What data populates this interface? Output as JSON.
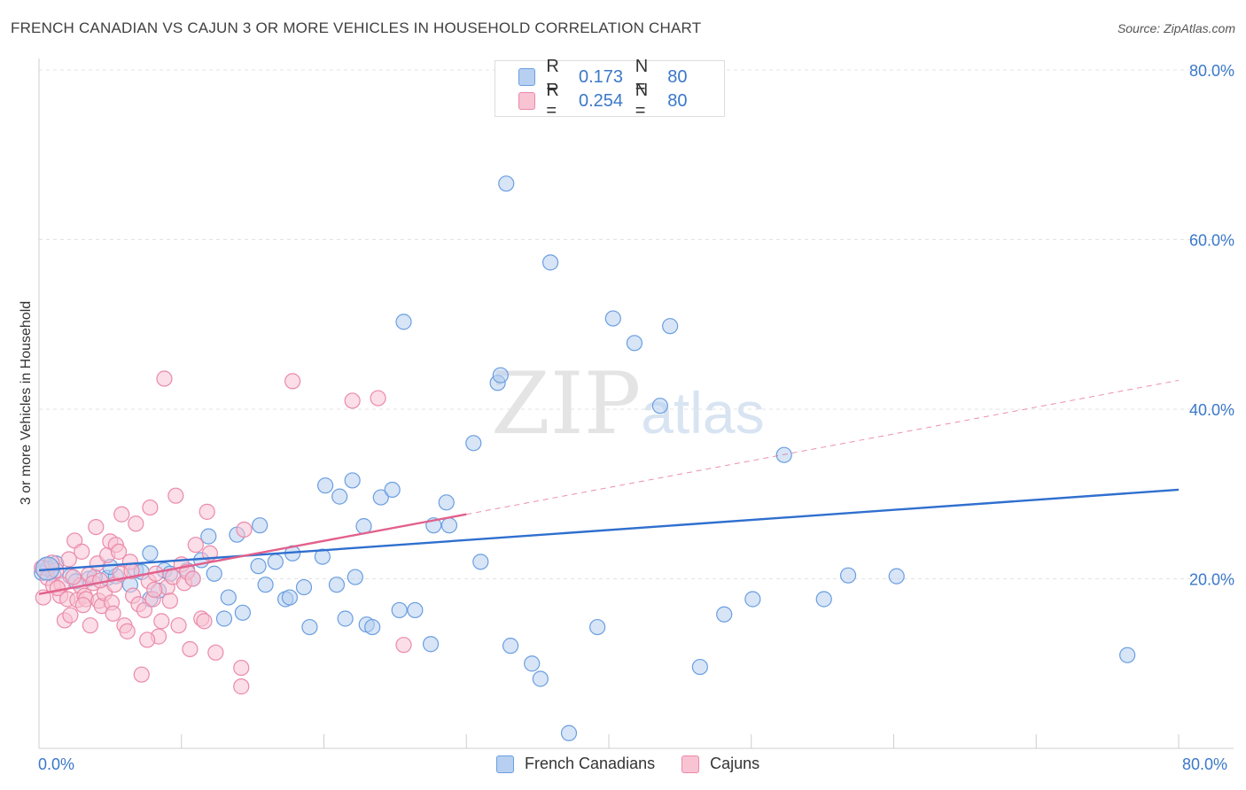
{
  "header": {
    "title": "FRENCH CANADIAN VS CAJUN 3 OR MORE VEHICLES IN HOUSEHOLD CORRELATION CHART",
    "source": "Source: ZipAtlas.com"
  },
  "legend": {
    "rows": [
      {
        "r_label": "R =",
        "r_value": "0.173",
        "n_label": "N =",
        "n_value": "80"
      },
      {
        "r_label": "R =",
        "r_value": "0.254",
        "n_label": "N =",
        "n_value": "80"
      }
    ]
  },
  "watermark": {
    "zip": "ZIP",
    "atlas": "atlas"
  },
  "bottom_legend": {
    "items": [
      "French Canadians",
      "Cajuns"
    ]
  },
  "colors": {
    "blue_fill": "#b7cff0",
    "blue_stroke": "#6a9ee0",
    "blue_line": "#2f6fcf",
    "pink_fill": "#f8c3d3",
    "pink_stroke": "#eb8aaa",
    "pink_line": "#e2608c",
    "grid": "#e3e3e3",
    "axis_text": "#3a78c9"
  },
  "chart_data": {
    "type": "scatter",
    "title": "FRENCH CANADIAN VS CAJUN 3 OR MORE VEHICLES IN HOUSEHOLD CORRELATION CHART",
    "xlabel": "",
    "ylabel": "3 or more Vehicles in Household",
    "xlim": [
      0,
      80
    ],
    "ylim": [
      0,
      80
    ],
    "x_tick_labels": [
      "0.0%",
      "80.0%"
    ],
    "y_tick_labels": [
      "80.0%",
      "60.0%",
      "40.0%",
      "20.0%"
    ],
    "y_ticks": [
      80,
      60,
      40,
      20
    ],
    "grid": true,
    "series": [
      {
        "name": "French Canadians",
        "R": 0.173,
        "N": 80,
        "trend": {
          "x": [
            0,
            80
          ],
          "y": [
            21.0,
            30.5
          ]
        },
        "points": [
          [
            0.5,
            21.6
          ],
          [
            1.0,
            20.5
          ],
          [
            2.2,
            20.3
          ],
          [
            3.5,
            20.0
          ],
          [
            4.8,
            20.1
          ],
          [
            5.4,
            20.3
          ],
          [
            6.4,
            19.3
          ],
          [
            6.8,
            21.0
          ],
          [
            7.8,
            17.6
          ],
          [
            7.8,
            23.0
          ],
          [
            8.4,
            18.6
          ],
          [
            8.8,
            21.0
          ],
          [
            9.2,
            20.6
          ],
          [
            10.4,
            21.0
          ],
          [
            10.8,
            20.0
          ],
          [
            11.4,
            22.2
          ],
          [
            11.9,
            25.0
          ],
          [
            12.3,
            20.6
          ],
          [
            13.0,
            15.3
          ],
          [
            13.3,
            17.8
          ],
          [
            13.9,
            25.2
          ],
          [
            14.3,
            16.0
          ],
          [
            15.4,
            21.5
          ],
          [
            15.5,
            26.3
          ],
          [
            15.9,
            19.3
          ],
          [
            16.6,
            22.0
          ],
          [
            17.3,
            17.6
          ],
          [
            17.6,
            17.8
          ],
          [
            17.8,
            23.0
          ],
          [
            18.6,
            19.0
          ],
          [
            19.0,
            14.3
          ],
          [
            19.9,
            22.6
          ],
          [
            20.1,
            31.0
          ],
          [
            20.9,
            19.3
          ],
          [
            21.1,
            29.7
          ],
          [
            21.5,
            15.3
          ],
          [
            22.0,
            31.6
          ],
          [
            22.2,
            20.2
          ],
          [
            22.8,
            26.2
          ],
          [
            23.0,
            14.6
          ],
          [
            23.4,
            14.3
          ],
          [
            24.0,
            29.6
          ],
          [
            24.8,
            30.5
          ],
          [
            25.3,
            16.3
          ],
          [
            25.6,
            50.3
          ],
          [
            26.4,
            16.3
          ],
          [
            27.5,
            12.3
          ],
          [
            27.7,
            26.3
          ],
          [
            28.6,
            29.0
          ],
          [
            28.8,
            26.3
          ],
          [
            30.5,
            36.0
          ],
          [
            31.0,
            22.0
          ],
          [
            32.2,
            43.1
          ],
          [
            32.4,
            44.0
          ],
          [
            32.8,
            66.6
          ],
          [
            33.1,
            12.1
          ],
          [
            34.6,
            10.0
          ],
          [
            35.2,
            8.2
          ],
          [
            35.9,
            57.3
          ],
          [
            37.2,
            1.8
          ],
          [
            39.2,
            14.3
          ],
          [
            40.3,
            50.7
          ],
          [
            41.8,
            47.8
          ],
          [
            43.6,
            40.4
          ],
          [
            44.3,
            49.8
          ],
          [
            46.4,
            9.6
          ],
          [
            48.1,
            15.8
          ],
          [
            50.1,
            17.6
          ],
          [
            52.3,
            34.6
          ],
          [
            55.1,
            17.6
          ],
          [
            56.8,
            20.4
          ],
          [
            60.2,
            20.3
          ],
          [
            76.4,
            11.0
          ],
          [
            0.2,
            20.7
          ],
          [
            0.6,
            21.2
          ],
          [
            1.2,
            21.8
          ],
          [
            2.6,
            19.7
          ],
          [
            3.9,
            20.2
          ],
          [
            5.0,
            21.4
          ],
          [
            7.2,
            20.8
          ]
        ]
      },
      {
        "name": "Cajuns",
        "R": 0.254,
        "N": 80,
        "trend": {
          "x": [
            0,
            30
          ],
          "y": [
            18.2,
            27.6
          ]
        },
        "trend_dashed": {
          "x": [
            30,
            80
          ],
          "y": [
            27.6,
            43.4
          ]
        },
        "points": [
          [
            0.2,
            21.3
          ],
          [
            0.3,
            17.8
          ],
          [
            0.6,
            20.1
          ],
          [
            1.0,
            19.2
          ],
          [
            1.2,
            21.0
          ],
          [
            1.5,
            18.0
          ],
          [
            1.6,
            19.3
          ],
          [
            1.8,
            15.1
          ],
          [
            2.0,
            17.6
          ],
          [
            2.1,
            22.3
          ],
          [
            2.2,
            15.7
          ],
          [
            2.5,
            24.5
          ],
          [
            2.7,
            17.5
          ],
          [
            2.9,
            19.2
          ],
          [
            3.0,
            23.2
          ],
          [
            3.2,
            18.0
          ],
          [
            3.3,
            17.6
          ],
          [
            3.5,
            20.5
          ],
          [
            3.6,
            14.5
          ],
          [
            3.8,
            19.5
          ],
          [
            4.0,
            26.1
          ],
          [
            4.1,
            21.8
          ],
          [
            4.2,
            17.4
          ],
          [
            4.4,
            16.8
          ],
          [
            4.6,
            18.3
          ],
          [
            4.8,
            22.8
          ],
          [
            5.0,
            24.4
          ],
          [
            5.1,
            17.2
          ],
          [
            5.3,
            19.3
          ],
          [
            5.4,
            24.0
          ],
          [
            5.6,
            23.2
          ],
          [
            5.7,
            20.6
          ],
          [
            5.8,
            27.6
          ],
          [
            6.0,
            14.5
          ],
          [
            6.2,
            13.8
          ],
          [
            6.4,
            22.0
          ],
          [
            6.6,
            18.0
          ],
          [
            6.8,
            26.5
          ],
          [
            7.0,
            17.0
          ],
          [
            7.2,
            8.7
          ],
          [
            7.4,
            16.3
          ],
          [
            7.7,
            19.7
          ],
          [
            7.8,
            28.4
          ],
          [
            8.0,
            17.6
          ],
          [
            8.2,
            20.6
          ],
          [
            8.4,
            13.2
          ],
          [
            8.6,
            15.0
          ],
          [
            8.8,
            43.6
          ],
          [
            9.0,
            19.0
          ],
          [
            9.2,
            17.4
          ],
          [
            9.4,
            20.2
          ],
          [
            9.6,
            29.8
          ],
          [
            9.8,
            14.5
          ],
          [
            10.0,
            21.7
          ],
          [
            10.2,
            19.5
          ],
          [
            10.4,
            20.8
          ],
          [
            10.6,
            11.7
          ],
          [
            10.8,
            20.0
          ],
          [
            11.0,
            24.0
          ],
          [
            11.4,
            15.3
          ],
          [
            11.6,
            15.0
          ],
          [
            11.8,
            27.9
          ],
          [
            12.0,
            23.0
          ],
          [
            12.4,
            11.3
          ],
          [
            14.2,
            9.5
          ],
          [
            14.2,
            7.3
          ],
          [
            14.4,
            25.8
          ],
          [
            17.8,
            43.3
          ],
          [
            22.0,
            41.0
          ],
          [
            23.8,
            41.3
          ],
          [
            25.6,
            12.2
          ],
          [
            1.3,
            18.9
          ],
          [
            0.9,
            21.9
          ],
          [
            2.4,
            20.2
          ],
          [
            3.1,
            16.9
          ],
          [
            4.3,
            19.8
          ],
          [
            5.2,
            15.9
          ],
          [
            6.5,
            20.9
          ],
          [
            7.6,
            12.8
          ],
          [
            8.1,
            18.7
          ]
        ]
      }
    ]
  }
}
